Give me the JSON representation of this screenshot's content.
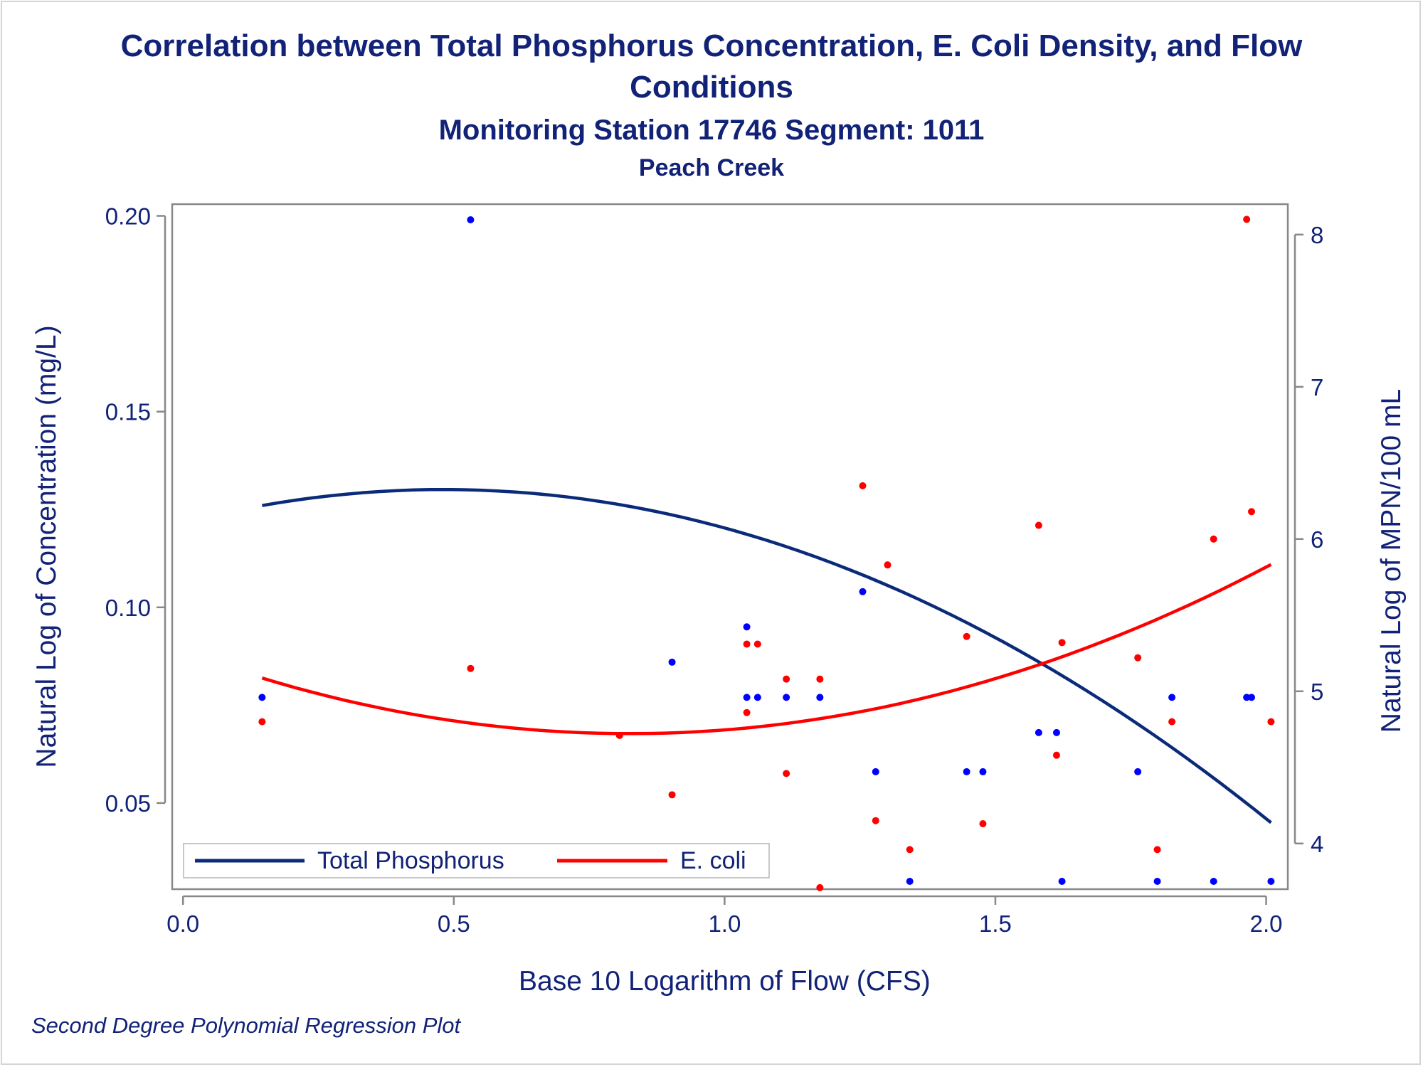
{
  "title": "Correlation between Total Phosphorus Concentration, E. Coli Density, and Flow Conditions",
  "subtitle": "Monitoring Station 17746 Segment: 1011",
  "subtitle2": "Peach Creek",
  "footnote": "Second Degree Polynomial Regression Plot",
  "colors": {
    "phosphorus": "#0a2a7a",
    "ecoli": "#ff0000",
    "tp_points": "#0000ff",
    "text": "#112277",
    "axis": "#888888"
  },
  "chart_data": {
    "type": "scatter",
    "xlabel": "Base 10 Logarithm of Flow (CFS)",
    "ylabel_left": "Natural Log of Concentration (mg/L)",
    "ylabel_right": "Natural Log of MPN/100 mL",
    "xlim": [
      -0.02,
      2.04
    ],
    "ylim_left": [
      0.028,
      0.203
    ],
    "ylim_right": [
      3.7,
      8.2
    ],
    "x_ticks": [
      "0.0",
      "0.5",
      "1.0",
      "1.5",
      "2.0"
    ],
    "y_left_ticks": [
      "0.05",
      "0.10",
      "0.15",
      "0.20"
    ],
    "y_right_ticks": [
      "4",
      "5",
      "6",
      "7",
      "8"
    ],
    "legend": {
      "position": "bottom-left",
      "entries": [
        "Total Phosphorus",
        "E. coli"
      ]
    },
    "series": [
      {
        "name": "Total Phosphorus",
        "axis": "left",
        "points": [
          [
            0.146,
            0.077
          ],
          [
            0.531,
            0.199
          ],
          [
            0.903,
            0.086
          ],
          [
            1.041,
            0.095
          ],
          [
            1.041,
            0.077
          ],
          [
            1.061,
            0.077
          ],
          [
            1.114,
            0.077
          ],
          [
            1.176,
            0.077
          ],
          [
            1.255,
            0.104
          ],
          [
            1.279,
            0.058
          ],
          [
            1.342,
            0.03
          ],
          [
            1.447,
            0.058
          ],
          [
            1.477,
            0.058
          ],
          [
            1.58,
            0.068
          ],
          [
            1.613,
            0.068
          ],
          [
            1.623,
            0.03
          ],
          [
            1.763,
            0.058
          ],
          [
            1.799,
            0.03
          ],
          [
            1.826,
            0.077
          ],
          [
            1.903,
            0.03
          ],
          [
            1.964,
            0.077
          ],
          [
            1.973,
            0.077
          ],
          [
            2.009,
            0.03
          ]
        ],
        "fit": {
          "degree": 2,
          "x": [
            0.146,
            2.009
          ],
          "y": [
            0.126,
            0.045
          ]
        }
      },
      {
        "name": "E. coli",
        "axis": "right",
        "points": [
          [
            0.146,
            4.8
          ],
          [
            0.531,
            5.15
          ],
          [
            0.806,
            4.71
          ],
          [
            0.903,
            4.32
          ],
          [
            1.041,
            4.86
          ],
          [
            1.041,
            5.31
          ],
          [
            1.061,
            5.31
          ],
          [
            1.114,
            5.08
          ],
          [
            1.114,
            4.46
          ],
          [
            1.176,
            5.08
          ],
          [
            1.176,
            3.71
          ],
          [
            1.255,
            6.35
          ],
          [
            1.279,
            4.15
          ],
          [
            1.301,
            5.83
          ],
          [
            1.342,
            3.96
          ],
          [
            1.447,
            5.36
          ],
          [
            1.477,
            4.13
          ],
          [
            1.58,
            6.09
          ],
          [
            1.613,
            4.58
          ],
          [
            1.623,
            5.32
          ],
          [
            1.763,
            5.22
          ],
          [
            1.799,
            3.96
          ],
          [
            1.826,
            4.8
          ],
          [
            1.903,
            6.0
          ],
          [
            1.964,
            8.1
          ],
          [
            1.973,
            6.18
          ],
          [
            2.009,
            4.8
          ]
        ],
        "fit": {
          "degree": 2,
          "x": [
            0.146,
            0.806,
            1.255,
            2.009
          ],
          "y": [
            5.09,
            4.71,
            4.88,
            5.83
          ]
        }
      }
    ]
  }
}
